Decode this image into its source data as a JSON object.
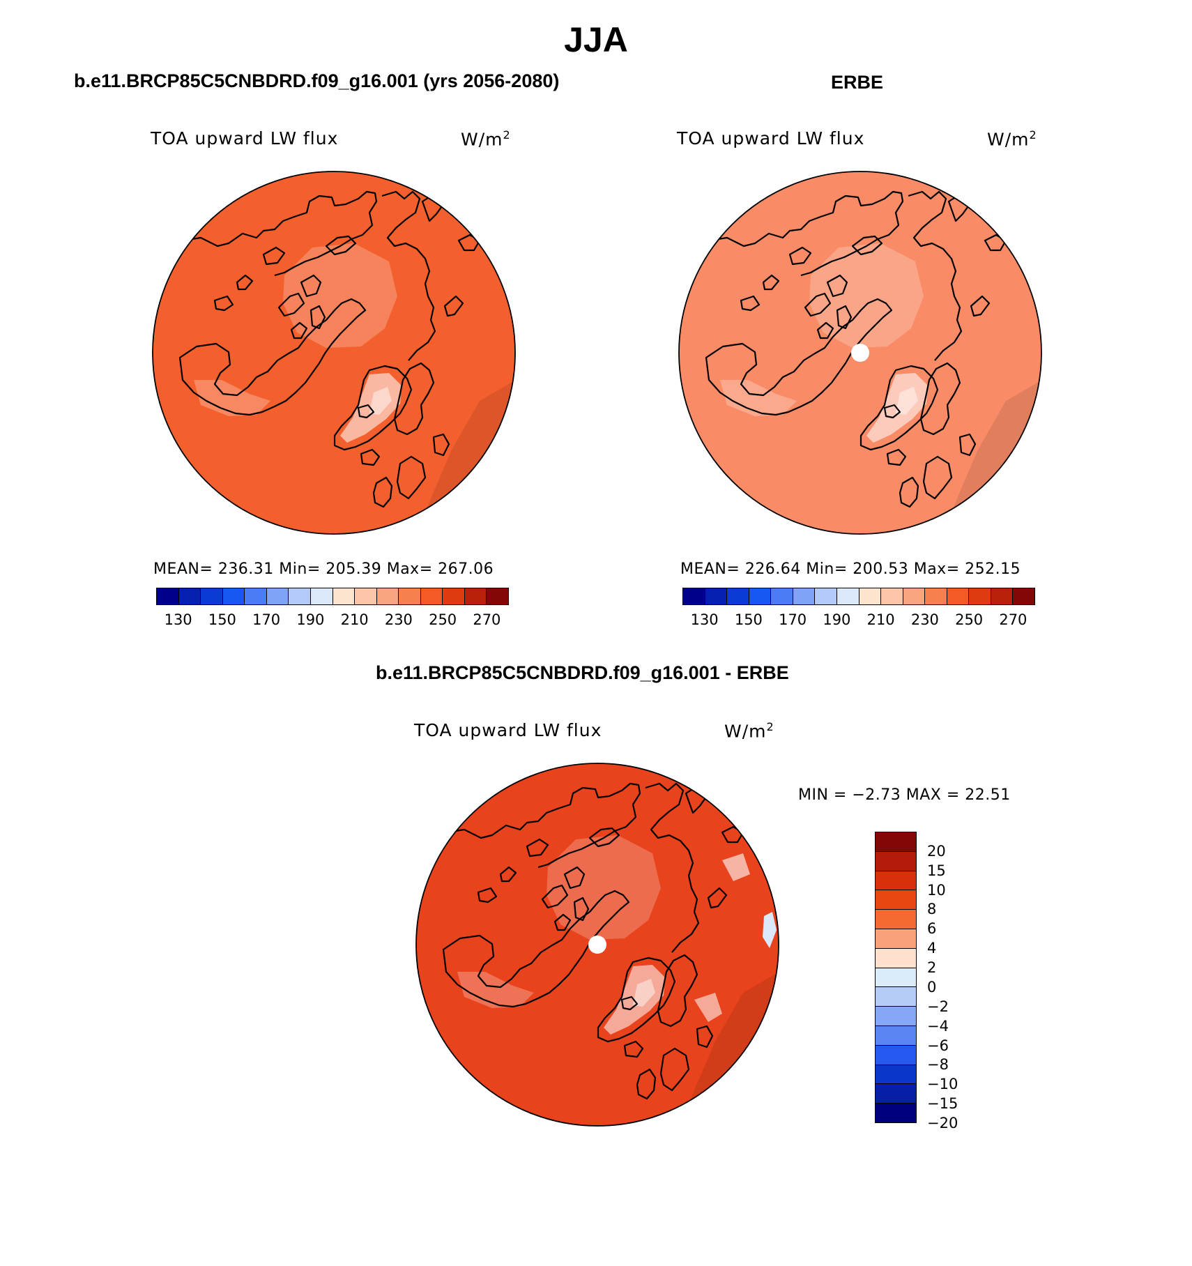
{
  "title": "JJA",
  "panels": [
    {
      "name": "model",
      "heading": "b.e11.BRCP85C5CNBDRD.f09_g16.001 (yrs 2056-2080)",
      "variable": "TOA upward LW flux",
      "units": "W/m",
      "units_exp": "2",
      "stats_text": "MEAN= 236.31   Min= 205.39   Max= 267.06",
      "stats": {
        "mean": 236.31,
        "min": 205.39,
        "max": 267.06
      },
      "pole_hole": false,
      "base_color": "#f4602d",
      "colorbar_labels": [
        "130",
        "150",
        "170",
        "190",
        "210",
        "230",
        "250",
        "270"
      ]
    },
    {
      "name": "obs",
      "heading": "ERBE",
      "variable": "TOA upward LW flux",
      "units": "W/m",
      "units_exp": "2",
      "stats_text": "MEAN= 226.64   Min= 200.53   Max= 252.15",
      "stats": {
        "mean": 226.64,
        "min": 200.53,
        "max": 252.15
      },
      "pole_hole": true,
      "base_color": "#f98c67",
      "colorbar_labels": [
        "130",
        "150",
        "170",
        "190",
        "210",
        "230",
        "250",
        "270"
      ]
    }
  ],
  "diff": {
    "heading": "b.e11.BRCP85C5CNBDRD.f09_g16.001 - ERBE",
    "variable": "TOA upward LW flux",
    "units": "W/m",
    "units_exp": "2",
    "minmax_text": "MIN =   −2.73 MAX =   22.51",
    "stats": {
      "min": -2.73,
      "max": 22.51
    },
    "pole_hole": true,
    "base_color": "#e8431c",
    "colorbar_labels": [
      "20",
      "15",
      "10",
      "8",
      "6",
      "4",
      "2",
      "0",
      "−2",
      "−4",
      "−6",
      "−8",
      "−10",
      "−15",
      "−20"
    ]
  },
  "colors": {
    "abs_scale": [
      "#00008a",
      "#0520b0",
      "#0a3bd4",
      "#1757f2",
      "#4a7cf5",
      "#7ea3f7",
      "#b3c9f7",
      "#dbe8fa",
      "#fde4cf",
      "#fcc5a8",
      "#faa57f",
      "#f7804f",
      "#f35a26",
      "#e03a10",
      "#b9200a",
      "#840707"
    ],
    "diff_scale": [
      "#840707",
      "#b41a08",
      "#d8300a",
      "#ea4612",
      "#f56a30",
      "#f9a27a",
      "#fde1cc",
      "#dcebf9",
      "#b5ccf7",
      "#86a6f6",
      "#5a85f3",
      "#2458f0",
      "#0a36c9",
      "#0620a5",
      "#00007e"
    ]
  }
}
